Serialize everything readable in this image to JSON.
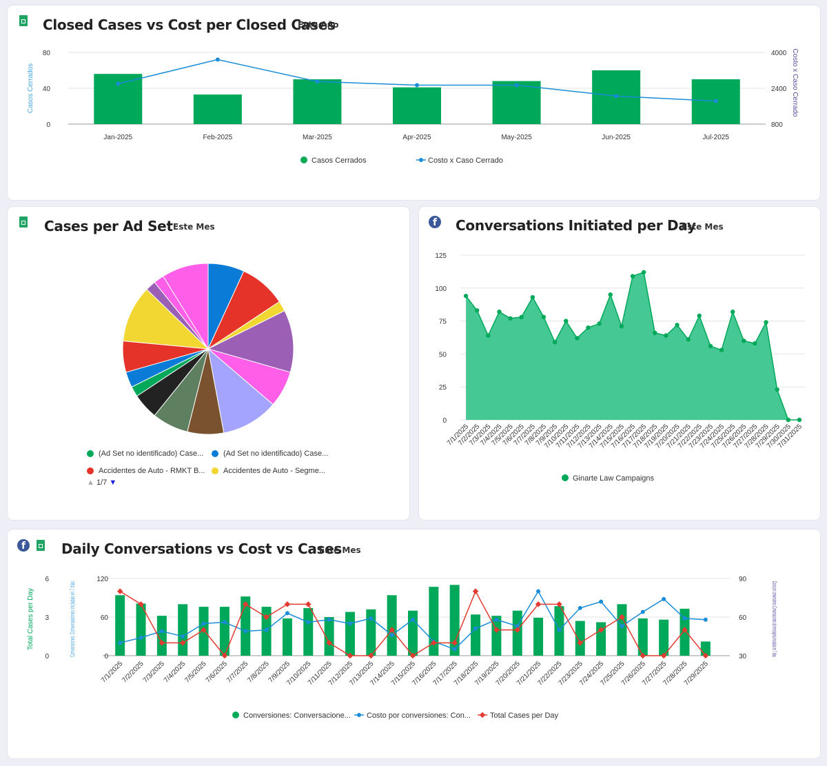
{
  "colors": {
    "green": "#00a859",
    "green_area": "#3cc58e",
    "blue": "#1a8cd8",
    "red": "#e23b31",
    "purple": "#5a4fa0",
    "grid": "#e6e6e6"
  },
  "card1": {
    "title": "Closed Cases vs Cost per Closed Cases",
    "period": "Este Año",
    "icon": "google-sheets-icon",
    "chart_data": {
      "type": "bar+line",
      "categories": [
        "Jan-2025",
        "Feb-2025",
        "Mar-2025",
        "Apr-2025",
        "May-2025",
        "Jun-2025",
        "Jul-2025"
      ],
      "series": [
        {
          "name": "Casos Cerrados",
          "type": "bar",
          "axis": "left",
          "values": [
            56,
            33,
            50,
            41,
            48,
            60,
            50
          ]
        },
        {
          "name": "Costo x Caso Cerrado",
          "type": "line",
          "axis": "right",
          "values": [
            2600,
            3680,
            2700,
            2540,
            2540,
            2050,
            1830
          ]
        }
      ],
      "ylabel_left": "Casos Cerrados",
      "ylabel_right": "Costo x Caso Cerrado",
      "yticks_left": [
        "0",
        "40",
        "80"
      ],
      "yticks_right": [
        "800",
        "2400",
        "4000"
      ],
      "ylim_left": [
        0,
        80
      ],
      "ylim_right": [
        800,
        4000
      ],
      "legend": "bottom"
    }
  },
  "card2": {
    "title": "Cases per Ad Set",
    "period": "Este Mes",
    "icon": "google-sheets-icon",
    "chart_data": {
      "type": "pie",
      "slice_values": [
        7,
        9,
        2,
        12,
        7,
        11,
        7,
        7,
        5,
        2,
        3,
        6,
        11,
        2,
        2,
        9
      ],
      "slice_colors": [
        "#0b7bd8",
        "#e5332a",
        "#f2d632",
        "#9b5fb5",
        "#ff5ee8",
        "#a4a4ff",
        "#7a5230",
        "#5e8060",
        "#222222",
        "#00a859",
        "#0b7bd8",
        "#e5332a",
        "#f2d632",
        "#9b5fb5",
        "#ff5ee8",
        "#ff5ee8"
      ],
      "legend": [
        {
          "label": "(Ad Set no identificado) Case...",
          "color": "#00a859"
        },
        {
          "label": "(Ad Set no identificado) Case...",
          "color": "#0b7bd8"
        },
        {
          "label": "Accidentes de Auto - RMKT B...",
          "color": "#e5332a"
        },
        {
          "label": "Accidentes de Auto - Segme...",
          "color": "#f2d632"
        }
      ],
      "pager": "1/7"
    }
  },
  "card3": {
    "title": "Conversations Initiated per Day",
    "period": "Este Mes",
    "icon": "facebook-icon",
    "chart_data": {
      "type": "area",
      "x": [
        "7/1/2025",
        "7/2/2025",
        "7/3/2025",
        "7/4/2025",
        "7/5/2025",
        "7/6/2025",
        "7/7/2025",
        "7/8/2025",
        "7/9/2025",
        "7/10/2025",
        "7/11/2025",
        "7/12/2025",
        "7/13/2025",
        "7/14/2025",
        "7/15/2025",
        "7/16/2025",
        "7/17/2025",
        "7/18/2025",
        "7/19/2025",
        "7/20/2025",
        "7/21/2025",
        "7/22/2025",
        "7/23/2025",
        "7/24/2025",
        "7/25/2025",
        "7/26/2025",
        "7/27/2025",
        "7/28/2025",
        "7/29/2025",
        "7/30/2025",
        "7/31/2025"
      ],
      "series": [
        {
          "name": "Ginarte Law Campaigns",
          "values": [
            94,
            83,
            64,
            82,
            77,
            78,
            93,
            78,
            59,
            75,
            62,
            70,
            73,
            95,
            71,
            109,
            112,
            66,
            64,
            72,
            61,
            79,
            56,
            53,
            82,
            60,
            58,
            74,
            23,
            0,
            0
          ]
        }
      ],
      "yticks": [
        "0",
        "25",
        "50",
        "75",
        "100",
        "125"
      ],
      "ylim": [
        0,
        125
      ],
      "legend": "bottom"
    }
  },
  "card4": {
    "title": "Daily Conversations vs Cost vs Cases",
    "period": "Este Mes",
    "icons": [
      "facebook-icon",
      "google-sheets-icon"
    ],
    "chart_data": {
      "type": "bar+line",
      "x": [
        "7/1/2025",
        "7/2/2025",
        "7/3/2025",
        "7/4/2025",
        "7/5/2025",
        "7/6/2025",
        "7/7/2025",
        "7/8/2025",
        "7/9/2025",
        "7/10/2025",
        "7/11/2025",
        "7/12/2025",
        "7/13/2025",
        "7/14/2025",
        "7/15/2025",
        "7/16/2025",
        "7/17/2025",
        "7/18/2025",
        "7/19/2025",
        "7/20/2025",
        "7/21/2025",
        "7/22/2025",
        "7/23/2025",
        "7/24/2025",
        "7/25/2025",
        "7/26/2025",
        "7/27/2025",
        "7/28/2025",
        "7/29/2025"
      ],
      "x_label_indices": [
        0,
        1,
        2,
        3,
        4,
        5,
        6,
        7,
        8,
        9,
        10,
        11,
        12,
        13,
        14,
        15,
        16,
        17,
        18,
        19,
        20,
        21,
        22,
        23,
        24,
        25,
        26,
        27,
        28
      ],
      "series": [
        {
          "name": "Conversiones: Conversacione...",
          "type": "bar",
          "axis": "left2",
          "values": [
            94,
            81,
            62,
            80,
            76,
            76,
            92,
            76,
            58,
            74,
            60,
            68,
            72,
            94,
            70,
            107,
            110,
            64,
            62,
            70,
            59,
            77,
            54,
            52,
            80,
            58,
            56,
            73,
            22
          ]
        },
        {
          "name": "Costo por conversiones: Con...",
          "type": "line",
          "axis": "right",
          "color": "#1a8cd8",
          "values": [
            40,
            44,
            49,
            45,
            55,
            56,
            49,
            50,
            63,
            56,
            58,
            55,
            59,
            46,
            58,
            41,
            35,
            51,
            58,
            53,
            80,
            50,
            67,
            72,
            53,
            64,
            74,
            59,
            58
          ]
        },
        {
          "name": "Total Cases per Day",
          "type": "line",
          "axis": "left1",
          "color": "#e23b31",
          "values": [
            5,
            4,
            1,
            1,
            2,
            0,
            4,
            3,
            4,
            4,
            1,
            0,
            0,
            2,
            0,
            1,
            1,
            5,
            2,
            2,
            4,
            4,
            1,
            2,
            3,
            0,
            0,
            2,
            0
          ]
        }
      ],
      "ylabel_left1": "Total Cases per Day",
      "ylabel_left2": "Conversiones: Conversaciones iniciadas en 7 días",
      "ylabel_right": "Costo por conversiones: Conversaciones de mensajería iniciadas en 7 días",
      "yticks_left1": [
        "0",
        "3",
        "6"
      ],
      "yticks_left2": [
        "0",
        "60",
        "120"
      ],
      "yticks_right": [
        "30",
        "60",
        "90"
      ],
      "ylim_left1": [
        0,
        6
      ],
      "ylim_left2": [
        0,
        120
      ],
      "ylim_right": [
        30,
        90
      ],
      "legend": "bottom"
    }
  }
}
